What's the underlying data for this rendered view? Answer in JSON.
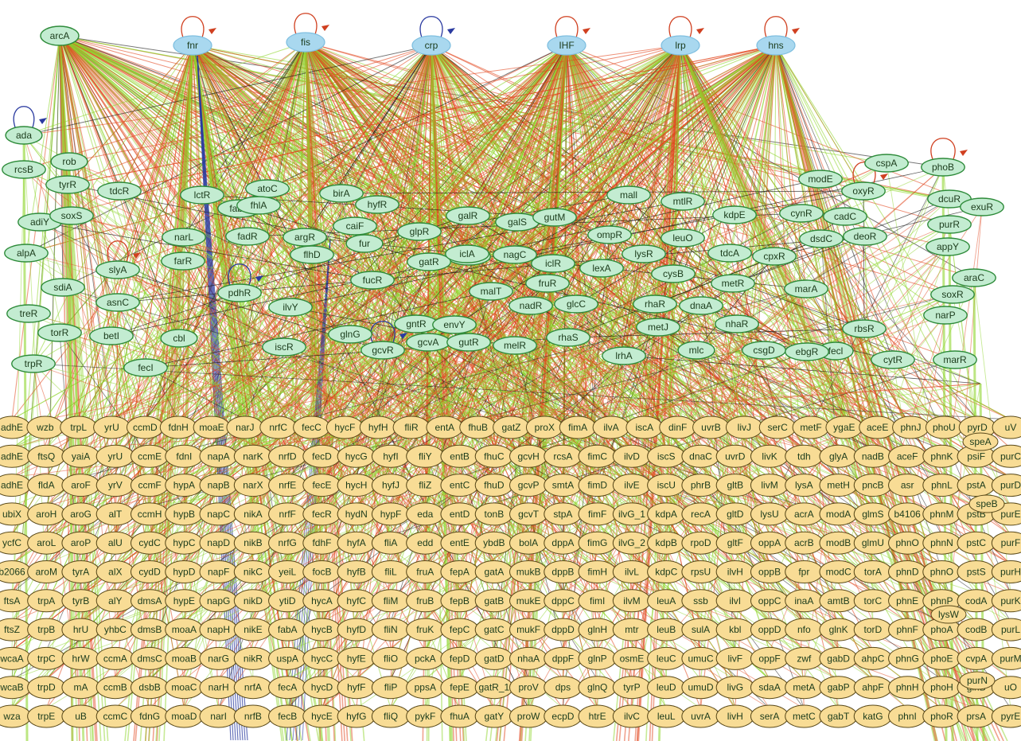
{
  "top_regulators": [
    "arcA",
    "fnr",
    "fis",
    "crp",
    "IHF",
    "lrp",
    "hns"
  ],
  "mid_regulators": [
    "ada",
    "rcsB",
    "rob",
    "tyrR",
    "tdcR",
    "lctR",
    "atoC",
    "birA",
    "fabR",
    "fhlA",
    "hyfR",
    "mall",
    "mtlR",
    "modE",
    "cspA",
    "phoB",
    "oxyR",
    "adiY",
    "soxS",
    "narL",
    "fadR",
    "argR",
    "caiF",
    "galR",
    "galS",
    "gutM",
    "kdpE",
    "cynR",
    "cadC",
    "dcuR",
    "exuR",
    "alpA",
    "glpR",
    "fur",
    "flhD",
    "lacI",
    "nagC",
    "ompR",
    "leuO",
    "lysR",
    "tdcA",
    "cpxR",
    "dsdC",
    "deoR",
    "purR",
    "appY",
    "sdiA",
    "slyA",
    "farR",
    "pdhR",
    "fucR",
    "gatR",
    "iclA",
    "iclR",
    "lexA",
    "cysB",
    "metR",
    "marA",
    "araC",
    "treR",
    "asnC",
    "ilvY",
    "fruR",
    "malT",
    "nadR",
    "glcC",
    "rhaR",
    "dnaA",
    "soxR",
    "torR",
    "betI",
    "cbl",
    "gntR",
    "envY",
    "narP",
    "glnG",
    "gcvR",
    "gcvA",
    "gutR",
    "melR",
    "rhaS",
    "metJ",
    "nhaR",
    "rbsR",
    "trpR",
    "fecI",
    "iscR",
    "lrhA",
    "mlc",
    "csgD",
    "ebgR",
    "cytR",
    "marR"
  ],
  "target_genes": [
    [
      "adhE",
      "wzb",
      "trpL",
      "yrU",
      "ccmD",
      "fdnH",
      "moaE",
      "narJ",
      "nrfC",
      "fecC",
      "hycF",
      "hyfH",
      "fliR",
      "entA",
      "fhuB",
      "gatZ",
      "proX",
      "fimA",
      "ilvA",
      "iscA",
      "dinF",
      "uvrB",
      "livJ",
      "serC",
      "metF",
      "ygaE",
      "aceE",
      "phnJ",
      "phoU",
      "pyrD",
      "uV"
    ],
    [
      "adhE",
      "ftsQ",
      "yaiA",
      "yrU",
      "ccmE",
      "fdnI",
      "napA",
      "narK",
      "nrfD",
      "fecD",
      "hycG",
      "hyfI",
      "fliY",
      "entB",
      "fhuC",
      "gcvH",
      "rcsA",
      "fimC",
      "ilvD",
      "iscS",
      "dnaC",
      "uvrD",
      "livK",
      "tdh",
      "glyA",
      "nadB",
      "aceF",
      "phnK",
      "psiF",
      "purC"
    ],
    [
      "adhE",
      "fldA",
      "aroF",
      "yrV",
      "ccmF",
      "hypA",
      "napB",
      "narX",
      "nrfE",
      "fecE",
      "hycH",
      "hyfJ",
      "fliZ",
      "entC",
      "fhuD",
      "gcvP",
      "smtA",
      "fimD",
      "ilvE",
      "iscU",
      "phrB",
      "gltB",
      "livM",
      "lysA",
      "metH",
      "pncB",
      "asr",
      "phnL",
      "pstA",
      "purD"
    ],
    [
      "ubiX",
      "aroH",
      "aroG",
      "alT",
      "ccmH",
      "hypB",
      "napC",
      "nikA",
      "nrfF",
      "fecR",
      "hydN",
      "hypF",
      "eda",
      "entD",
      "tonB",
      "gcvT",
      "stpA",
      "fimF",
      "ilvG_1",
      "kdpA",
      "recA",
      "gltD",
      "lysU",
      "acrA",
      "modA",
      "glmS",
      "b4106",
      "phnM",
      "pstB",
      "purE"
    ],
    [
      "ycfC",
      "aroL",
      "aroP",
      "alU",
      "cydC",
      "hypC",
      "napD",
      "nikB",
      "nrfG",
      "fdhF",
      "hyfA",
      "fliA",
      "edd",
      "entE",
      "ybdB",
      "bolA",
      "dppA",
      "fimG",
      "ilvG_2",
      "kdpB",
      "rpoD",
      "gltF",
      "oppA",
      "acrB",
      "modB",
      "glmU",
      "phnO",
      "phnN",
      "pstC",
      "purF"
    ],
    [
      "b2066",
      "aroM",
      "tyrA",
      "alX",
      "cydD",
      "hypD",
      "napF",
      "nikC",
      "yeiL",
      "focB",
      "hyfB",
      "fliL",
      "fruA",
      "fepA",
      "gatA",
      "mukB",
      "dppB",
      "fimH",
      "ilvL",
      "kdpC",
      "rpsU",
      "ilvH",
      "oppB",
      "fpr",
      "modC",
      "torA",
      "phnD",
      "phnO",
      "pstS",
      "purH"
    ],
    [
      "ftsA",
      "trpA",
      "tyrB",
      "alY",
      "dmsA",
      "hypE",
      "napG",
      "nikD",
      "ytiD",
      "hycA",
      "hyfC",
      "fliM",
      "fruB",
      "fepB",
      "gatB",
      "mukE",
      "dppC",
      "fimI",
      "ilvM",
      "leuA",
      "ssb",
      "ilvI",
      "oppC",
      "inaA",
      "amtB",
      "torC",
      "phnE",
      "phnP",
      "codA",
      "purK"
    ],
    [
      "ftsZ",
      "trpB",
      "hrU",
      "yhbC",
      "dmsB",
      "moaA",
      "napH",
      "nikE",
      "fabA",
      "hycB",
      "hyfD",
      "fliN",
      "fruK",
      "fepC",
      "gatC",
      "mukF",
      "dppD",
      "glnH",
      "mtr",
      "leuB",
      "sulA",
      "kbl",
      "oppD",
      "nfo",
      "glnK",
      "torD",
      "phnF",
      "phoA",
      "codB",
      "purL"
    ],
    [
      "wcaA",
      "trpC",
      "hrW",
      "ccmA",
      "dmsC",
      "moaB",
      "narG",
      "nikR",
      "uspA",
      "hycC",
      "hyfE",
      "fliO",
      "pckA",
      "fepD",
      "gatD",
      "nhaA",
      "dppF",
      "glnP",
      "osmE",
      "leuC",
      "umuC",
      "livF",
      "oppF",
      "zwf",
      "gabD",
      "ahpC",
      "phnG",
      "phoE",
      "cvpA",
      "purM"
    ],
    [
      "wcaB",
      "trpD",
      "mA",
      "ccmB",
      "dsbB",
      "moaC",
      "narH",
      "nrfA",
      "fecA",
      "hycD",
      "hyfF",
      "fliP",
      "ppsA",
      "fepE",
      "gatR_1",
      "proV",
      "dps",
      "glnQ",
      "tyrP",
      "leuD",
      "umuD",
      "livG",
      "sdaA",
      "metA",
      "gabP",
      "ahpF",
      "phnH",
      "phoH",
      "glnB",
      "uO"
    ],
    [
      "wza",
      "trpE",
      "uB",
      "ccmC",
      "fdnG",
      "moaD",
      "narI",
      "nrfB",
      "fecB",
      "hycE",
      "hyfG",
      "fliQ",
      "pykF",
      "fhuA",
      "gatY",
      "proW",
      "ecpD",
      "htrE",
      "ilvC",
      "leuL",
      "uvrA",
      "livH",
      "serA",
      "metC",
      "gabT",
      "katG",
      "phnI",
      "phoR",
      "prsA",
      "pyrE"
    ]
  ],
  "stray_labels": [
    "speA",
    "speB",
    "lysW",
    "purN",
    "fecl"
  ],
  "colors": {
    "activation": "#8fd62e",
    "repression": "#e2481f",
    "dual": "#1a1a1a",
    "blue_edge": "#2a3aa0",
    "top_fill": "#a9d8ef",
    "mid_fill": "#c3ecd1",
    "target_fill": "#f8dc95"
  }
}
